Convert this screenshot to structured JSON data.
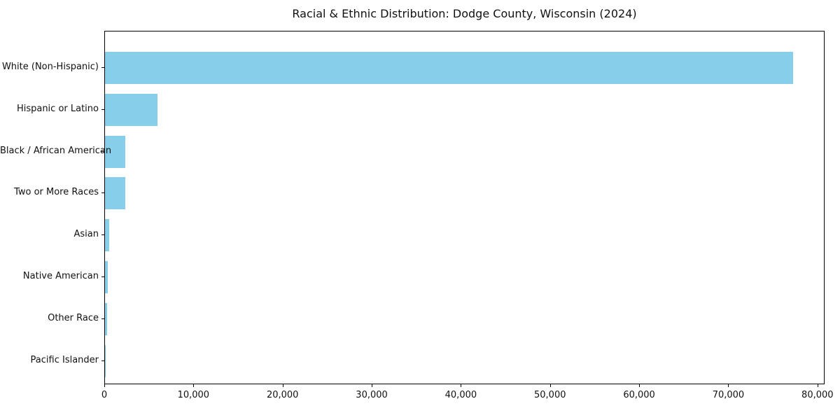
{
  "chart_data": {
    "type": "bar",
    "orientation": "horizontal",
    "title": "Racial & Ethnic Distribution: Dodge County, Wisconsin (2024)",
    "categories": [
      "White (Non-Hispanic)",
      "Hispanic or Latino",
      "Black / African American",
      "Two or More Races",
      "Asian",
      "Native American",
      "Other Race",
      "Pacific Islander"
    ],
    "values": [
      77200,
      5900,
      2300,
      2250,
      470,
      300,
      200,
      30
    ],
    "xlabel": "",
    "ylabel": "",
    "xlim": [
      0,
      80800
    ],
    "x_ticks": [
      0,
      10000,
      20000,
      30000,
      40000,
      50000,
      60000,
      70000,
      80000
    ],
    "x_tick_labels": [
      "0",
      "10,000",
      "20,000",
      "30,000",
      "40,000",
      "50,000",
      "60,000",
      "70,000",
      "80,000"
    ],
    "bar_color": "#87CEEB",
    "grid": false,
    "legend": "none"
  }
}
